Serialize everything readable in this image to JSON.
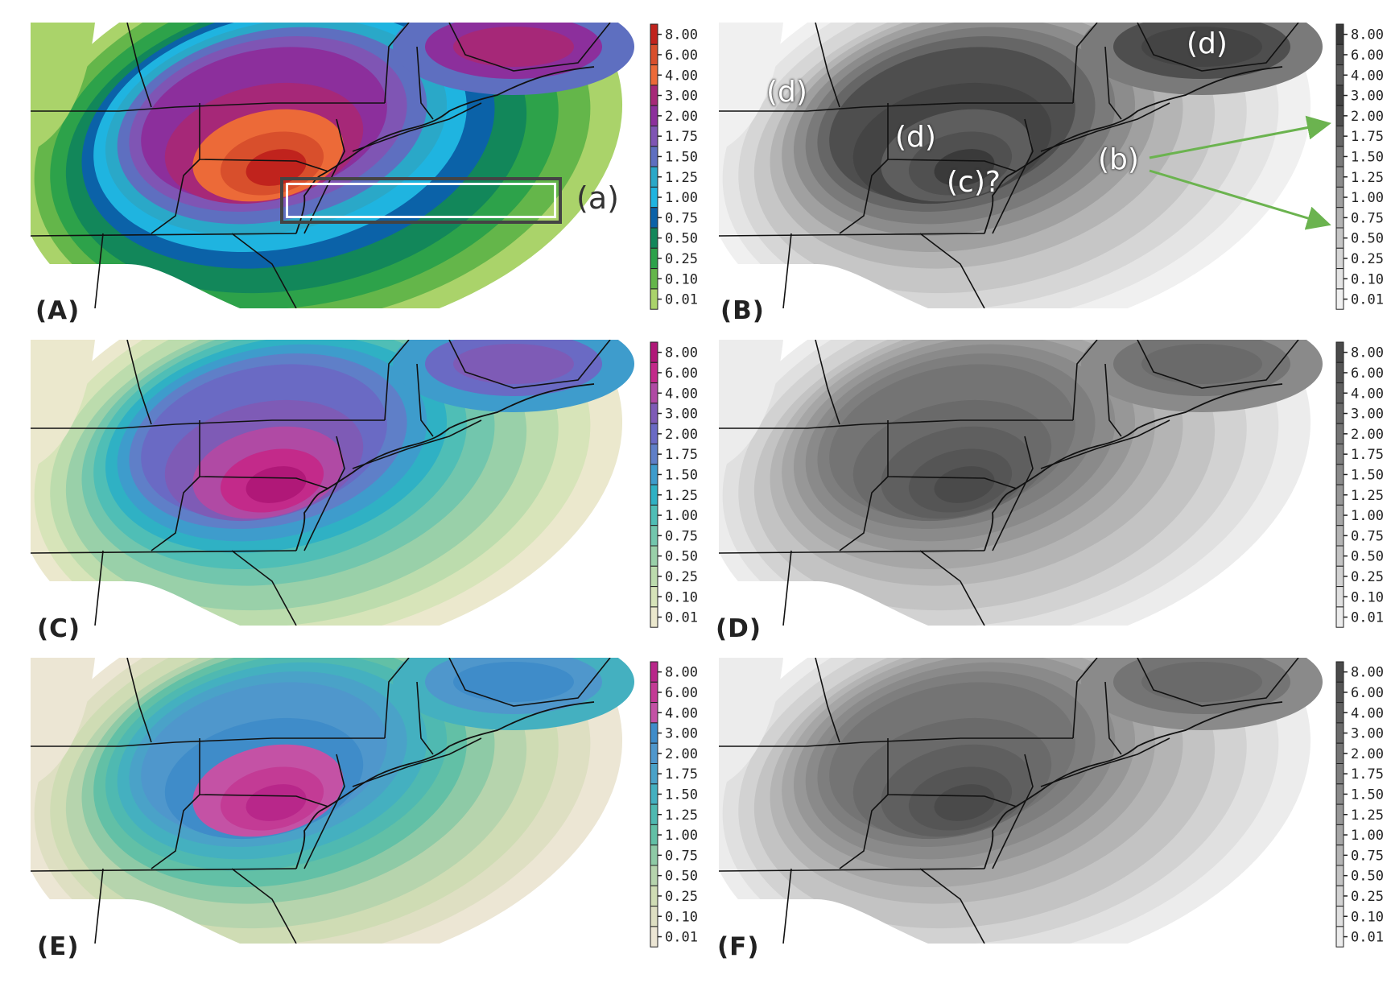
{
  "scale_values": [
    "8.00",
    "6.00",
    "4.00",
    "3.00",
    "2.00",
    "1.75",
    "1.50",
    "1.25",
    "1.00",
    "0.75",
    "0.50",
    "0.25",
    "0.10",
    "0.01"
  ],
  "palettes": {
    "A": [
      "#c0231d",
      "#d84f2c",
      "#ec6a38",
      "#a62878",
      "#8c2f9c",
      "#7f55b4",
      "#5e6fc0",
      "#2aa8c8",
      "#1fb4e0",
      "#0b62a8",
      "#12875a",
      "#2da24a",
      "#64b64a",
      "#aad36a"
    ],
    "B": [
      "#3a3a3a",
      "#505050",
      "#5e5e5e",
      "#444444",
      "#4e4e4e",
      "#666666",
      "#7a7a7a",
      "#8c8c8c",
      "#a0a0a0",
      "#b4b4b4",
      "#c6c6c6",
      "#d6d6d6",
      "#e4e4e4",
      "#f0f0f0"
    ],
    "C": [
      "#b01878",
      "#c32a8a",
      "#b04aa4",
      "#7e5bb6",
      "#6a6ac4",
      "#5f7fc8",
      "#3e9ccc",
      "#2fb1c4",
      "#4fbeb6",
      "#72c6ad",
      "#99d0a9",
      "#bcdcad",
      "#d7e4b9",
      "#ebe8cd"
    ],
    "D": [
      "#4a4a4a",
      "#555555",
      "#5f5f5f",
      "#6a6a6a",
      "#747474",
      "#7e7e7e",
      "#8a8a8a",
      "#979797",
      "#a6a6a6",
      "#b4b4b4",
      "#c3c3c3",
      "#d2d2d2",
      "#e0e0e0",
      "#ececec"
    ],
    "E": [
      "#b8278a",
      "#c33b95",
      "#c452a5",
      "#3f8cc9",
      "#4f97cc",
      "#4aa2c8",
      "#44b0c0",
      "#4fb9b1",
      "#62c0a6",
      "#8ecaa6",
      "#b6d4ad",
      "#cfdcb4",
      "#dedfc2",
      "#ece6d4"
    ],
    "F": [
      "#4a4a4a",
      "#555555",
      "#5f5f5f",
      "#6a6a6a",
      "#747474",
      "#7e7e7e",
      "#8a8a8a",
      "#979797",
      "#a6a6a6",
      "#b4b4b4",
      "#c3c3c3",
      "#d2d2d2",
      "#e0e0e0",
      "#ececec"
    ]
  },
  "panels": [
    {
      "id": "A",
      "label": "(A)",
      "bg": "#9ccf5e",
      "core": "#e06030",
      "ring": "#8a34a0"
    },
    {
      "id": "B",
      "label": "(B)",
      "bg": "#cfcfcf",
      "core": "#4a4a4a",
      "ring": "#5a5a5a"
    },
    {
      "id": "C",
      "label": "(C)",
      "bg": "#e8e6cc",
      "core": "#b03a9c",
      "ring": "#6a6ac4"
    },
    {
      "id": "D",
      "label": "(D)",
      "bg": "#e2e2e2",
      "core": "#555555",
      "ring": "#7a7a7a"
    },
    {
      "id": "E",
      "label": "(E)",
      "bg": "#e8e2cc",
      "core": "#c04aa0",
      "ring": "#4a92cc"
    },
    {
      "id": "F",
      "label": "(F)",
      "bg": "#e2e2e2",
      "core": "#555555",
      "ring": "#7a7a7a"
    }
  ],
  "annotations": {
    "a": "(a)",
    "b": "(b)",
    "c": "(c)?",
    "d1": "(d)",
    "d2": "(d)",
    "d3": "(d)"
  },
  "colors": {
    "arrow": "#6bb34f",
    "box": "#444444",
    "border_line": "#111111"
  }
}
